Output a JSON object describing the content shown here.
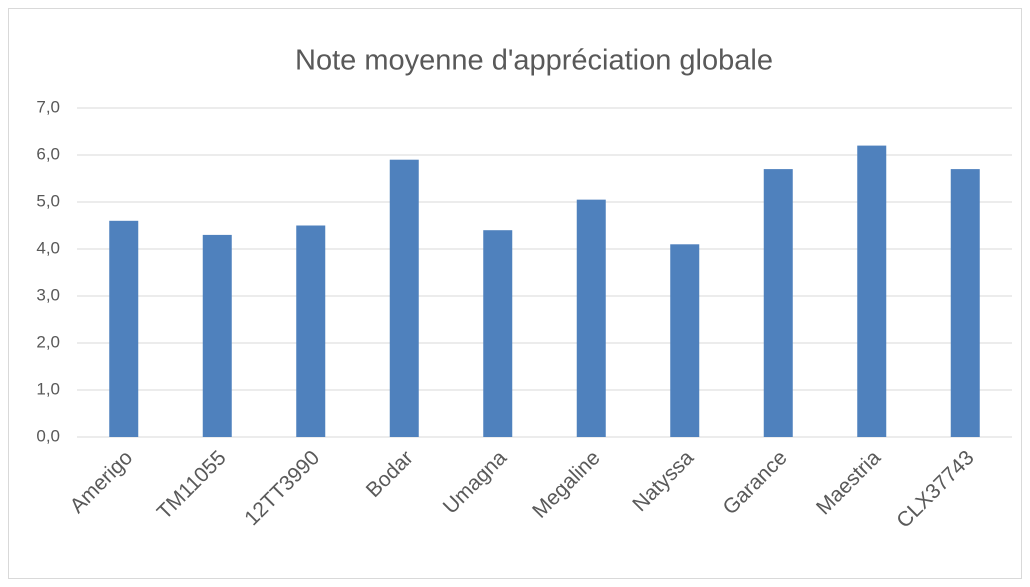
{
  "chart_data": {
    "type": "bar",
    "title": "Note moyenne d'appréciation globale",
    "categories": [
      "Amerigo",
      "TM11055",
      "12TT3990",
      "Bodar",
      "Umagna",
      "Megaline",
      "Natyssa",
      "Garance",
      "Maestria",
      "CLX37743"
    ],
    "values": [
      4.6,
      4.3,
      4.5,
      5.9,
      4.4,
      5.05,
      4.1,
      5.7,
      6.2,
      5.7
    ],
    "color": "#4f81bd",
    "ylim": [
      0,
      7
    ],
    "yticks": [
      {
        "value": 0,
        "label": "0,0"
      },
      {
        "value": 1,
        "label": "1,0"
      },
      {
        "value": 2,
        "label": "2,0"
      },
      {
        "value": 3,
        "label": "3,0"
      },
      {
        "value": 4,
        "label": "4,0"
      },
      {
        "value": 5,
        "label": "5,0"
      },
      {
        "value": 6,
        "label": "6,0"
      },
      {
        "value": 7,
        "label": "7,0"
      }
    ],
    "grid": true
  }
}
